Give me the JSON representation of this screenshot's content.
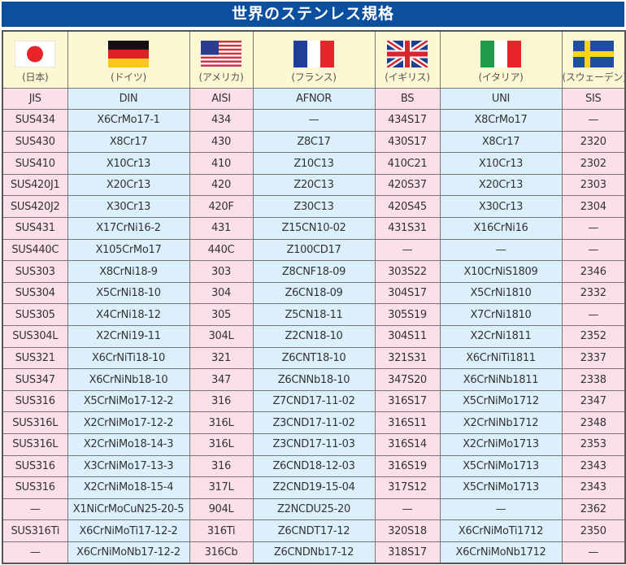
{
  "title": "世界のステンレス規格",
  "countries": [
    {
      "flag": "japan-flag",
      "label": "(日本)",
      "standard": "JIS"
    },
    {
      "flag": "germany-flag",
      "label": "(ドイツ)",
      "standard": "DIN"
    },
    {
      "flag": "usa-flag",
      "label": "(アメリカ)",
      "standard": "AISI"
    },
    {
      "flag": "france-flag",
      "label": "(フランス)",
      "standard": "AFNOR"
    },
    {
      "flag": "uk-flag",
      "label": "(イギリス)",
      "standard": "BS"
    },
    {
      "flag": "italy-flag",
      "label": "(イタリア)",
      "standard": "UNI"
    },
    {
      "flag": "sweden-flag",
      "label": "(スウェーデン)",
      "standard": "SIS"
    }
  ],
  "rows": [
    [
      "SUS434",
      "X6CrMo17-1",
      "434",
      "—",
      "434S17",
      "X8CrMo17",
      "—"
    ],
    [
      "SUS430",
      "X8Cr17",
      "430",
      "Z8C17",
      "430S17",
      "X8Cr17",
      "2320"
    ],
    [
      "SUS410",
      "X10Cr13",
      "410",
      "Z10C13",
      "410C21",
      "X10Cr13",
      "2302"
    ],
    [
      "SUS420J1",
      "X20Cr13",
      "420",
      "Z20C13",
      "420S37",
      "X20Cr13",
      "2303"
    ],
    [
      "SUS420J2",
      "X30Cr13",
      "420F",
      "Z30C13",
      "420S45",
      "X30Cr13",
      "2304"
    ],
    [
      "SUS431",
      "X17CrNi16-2",
      "431",
      "Z15CN10-02",
      "431S31",
      "X16CrNi16",
      "—"
    ],
    [
      "SUS440C",
      "X105CrMo17",
      "440C",
      "Z100CD17",
      "—",
      "—",
      "—"
    ],
    [
      "SUS303",
      "X8CrNi18-9",
      "303",
      "Z8CNF18-09",
      "303S22",
      "X10CrNiS1809",
      "2346"
    ],
    [
      "SUS304",
      "X5CrNi18-10",
      "304",
      "Z6CN18-09",
      "304S17",
      "X5CrNi1810",
      "2332"
    ],
    [
      "SUS305",
      "X4CrNi18-12",
      "305",
      "Z5CN18-11",
      "305S19",
      "X7CrNi1810",
      "—"
    ],
    [
      "SUS304L",
      "X2CrNi19-11",
      "304L",
      "Z2CN18-10",
      "304S11",
      "X2CrNi1811",
      "2352"
    ],
    [
      "SUS321",
      "X6CrNiTi18-10",
      "321",
      "Z6CNT18-10",
      "321S31",
      "X6CrNiTi1811",
      "2337"
    ],
    [
      "SUS347",
      "X6CrNiNb18-10",
      "347",
      "Z6CNNb18-10",
      "347S20",
      "X6CrNiNb1811",
      "2338"
    ],
    [
      "SUS316",
      "X5CrNiMo17-12-2",
      "316",
      "Z7CND17-11-02",
      "316S17",
      "X5CrNiMo1712",
      "2347"
    ],
    [
      "SUS316L",
      "X2CrNiMo17-12-2",
      "316L",
      "Z3CND17-11-02",
      "316S11",
      "X2CrNiNb1712",
      "2348"
    ],
    [
      "SUS316L",
      "X2CrNiMo18-14-3",
      "316L",
      "Z3CND17-11-03",
      "316S14",
      "X2CrNiMo1713",
      "2353"
    ],
    [
      "SUS316",
      "X3CrNiMo17-13-3",
      "316",
      "Z6CND18-12-03",
      "316S19",
      "X5CrNiMo1713",
      "2343"
    ],
    [
      "SUS316",
      "X2CrNiMo18-15-4",
      "317L",
      "Z2CND19-15-04",
      "317S12",
      "X5CrNiMo1713",
      "2343"
    ],
    [
      "—",
      "X1NiCrMoCuN25-20-5",
      "904L",
      "Z2NCDU25-20",
      "—",
      "—",
      "2362"
    ],
    [
      "SUS316Ti",
      "X6CrNiMoTi17-12-2",
      "316Ti",
      "Z6CNDT17-12",
      "320S18",
      "X6CrNiMoTi1712",
      "2350"
    ],
    [
      "—",
      "X6CrNiMoNb17-12-2",
      "316Cb",
      "Z6CNDNb17-12",
      "318S17",
      "X6CrNiMoNb1712",
      "—"
    ]
  ],
  "colors": {
    "title_bg": "#0b4f9e",
    "pink": "#fbe0ea",
    "blue": "#dcf0fb",
    "flag_row": "#fdf8d4"
  }
}
